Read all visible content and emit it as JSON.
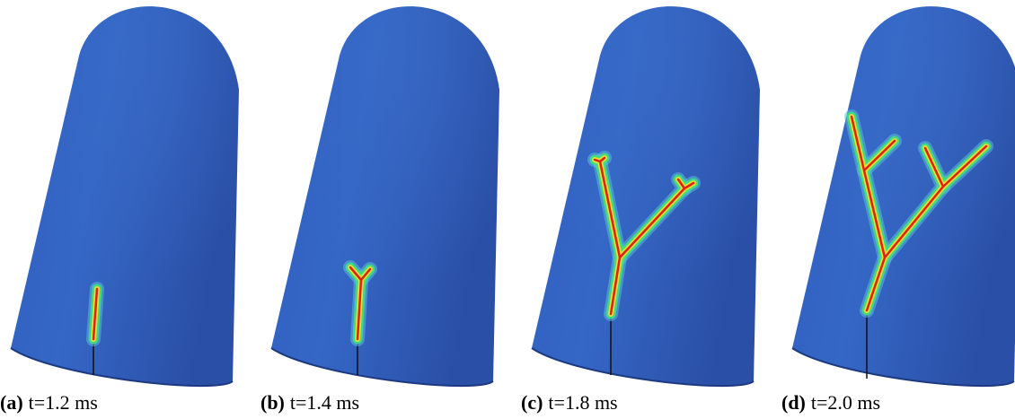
{
  "panels": [
    {
      "label": "(a)",
      "caption": "t=1.2 ms"
    },
    {
      "label": "(b)",
      "caption": "t=1.4 ms"
    },
    {
      "label": "(c)",
      "caption": "t=1.8 ms"
    },
    {
      "label": "(d)",
      "caption": "t=2.0 ms"
    }
  ]
}
